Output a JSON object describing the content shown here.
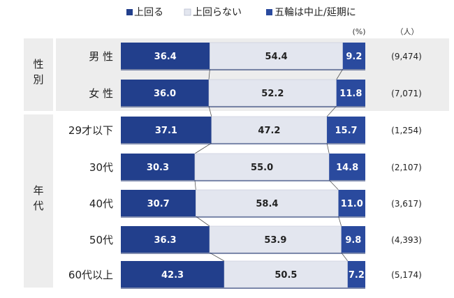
{
  "legend": [
    {
      "label": "上回る",
      "color": "#223f8c"
    },
    {
      "label": "上回らない",
      "color": "#e3e6ef"
    },
    {
      "label": "五輪は中止/延期に",
      "color": "#2a4a9e"
    }
  ],
  "units": {
    "percent": "(%)",
    "people": "（人）"
  },
  "groups": [
    {
      "label": "性別",
      "rows": [
        0,
        1
      ]
    },
    {
      "label": "年代",
      "rows": [
        2,
        3,
        4,
        5,
        6
      ]
    }
  ],
  "chart_data": {
    "type": "bar",
    "stacked": true,
    "orientation": "horizontal",
    "xlim": [
      0,
      100
    ],
    "categories": [
      "男 性",
      "女 性",
      "29才以下",
      "30代",
      "40代",
      "50代",
      "60代以上"
    ],
    "counts": [
      "(9,474)",
      "(7,071)",
      "(1,254)",
      "(2,107)",
      "(3,617)",
      "(4,393)",
      "(5,174)"
    ],
    "series": [
      {
        "name": "上回る",
        "values": [
          36.4,
          36.0,
          37.1,
          30.3,
          30.7,
          36.3,
          42.3
        ]
      },
      {
        "name": "上回らない",
        "values": [
          54.4,
          52.2,
          47.2,
          55.0,
          58.4,
          53.9,
          50.5
        ]
      },
      {
        "name": "五輪は中止/延期に",
        "values": [
          9.2,
          11.8,
          15.7,
          14.8,
          11.0,
          9.8,
          7.2
        ]
      }
    ]
  }
}
